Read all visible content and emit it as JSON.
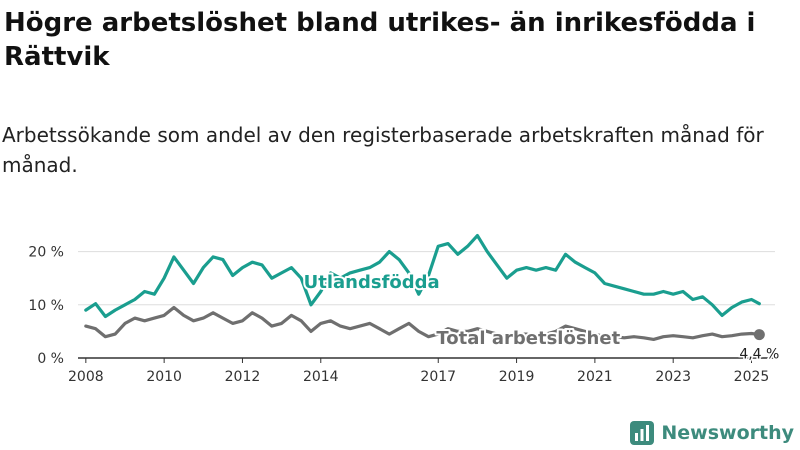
{
  "header": {
    "title": "Högre arbetslöshet bland utrikes- än inrikesfödda i Rättvik",
    "subtitle": "Arbetssökande som andel av den registerbaserade arbetskraften månad för månad."
  },
  "brand": {
    "name": "Newsworthy",
    "logo_icon": "chart-logo-icon",
    "color": "#3d8b7d"
  },
  "chart_data": {
    "type": "line",
    "title": "Högre arbetslöshet bland utrikes- än inrikesfödda i Rättvik",
    "subtitle": "Arbetssökande som andel av den registerbaserade arbetskraften månad för månad.",
    "xlabel": "",
    "ylabel": "",
    "xlim": [
      2007.8,
      2025.6
    ],
    "ylim": [
      0,
      25
    ],
    "y_ticks": [
      0,
      10,
      20
    ],
    "y_tick_labels": [
      "0 %",
      "10 %",
      "20 %"
    ],
    "x_ticks": [
      2008,
      2010,
      2012,
      2014,
      2017,
      2019,
      2021,
      2023,
      2025
    ],
    "grid": true,
    "legend": "direct labels",
    "series": [
      {
        "name": "Utlandsfödda",
        "color": "#1a9e8f",
        "points": [
          [
            2008.0,
            9.0
          ],
          [
            2008.25,
            10.2
          ],
          [
            2008.5,
            7.8
          ],
          [
            2008.75,
            9.0
          ],
          [
            2009.0,
            10.0
          ],
          [
            2009.25,
            11.0
          ],
          [
            2009.5,
            12.5
          ],
          [
            2009.75,
            12.0
          ],
          [
            2010.0,
            15.0
          ],
          [
            2010.25,
            19.0
          ],
          [
            2010.5,
            16.5
          ],
          [
            2010.75,
            14.0
          ],
          [
            2011.0,
            17.0
          ],
          [
            2011.25,
            19.0
          ],
          [
            2011.5,
            18.5
          ],
          [
            2011.75,
            15.5
          ],
          [
            2012.0,
            17.0
          ],
          [
            2012.25,
            18.0
          ],
          [
            2012.5,
            17.5
          ],
          [
            2012.75,
            15.0
          ],
          [
            2013.0,
            16.0
          ],
          [
            2013.25,
            17.0
          ],
          [
            2013.5,
            15.0
          ],
          [
            2013.75,
            10.0
          ],
          [
            2014.0,
            12.5
          ],
          [
            2014.25,
            16.0
          ],
          [
            2014.5,
            15.0
          ],
          [
            2014.75,
            16.0
          ],
          [
            2015.0,
            16.5
          ],
          [
            2015.25,
            17.0
          ],
          [
            2015.5,
            18.0
          ],
          [
            2015.75,
            20.0
          ],
          [
            2016.0,
            18.5
          ],
          [
            2016.25,
            16.0
          ],
          [
            2016.5,
            12.0
          ],
          [
            2016.75,
            15.5
          ],
          [
            2017.0,
            21.0
          ],
          [
            2017.25,
            21.5
          ],
          [
            2017.5,
            19.5
          ],
          [
            2017.75,
            21.0
          ],
          [
            2018.0,
            23.0
          ],
          [
            2018.25,
            20.0
          ],
          [
            2018.5,
            17.5
          ],
          [
            2018.75,
            15.0
          ],
          [
            2019.0,
            16.5
          ],
          [
            2019.25,
            17.0
          ],
          [
            2019.5,
            16.5
          ],
          [
            2019.75,
            17.0
          ],
          [
            2020.0,
            16.5
          ],
          [
            2020.25,
            19.5
          ],
          [
            2020.5,
            18.0
          ],
          [
            2020.75,
            17.0
          ],
          [
            2021.0,
            16.0
          ],
          [
            2021.25,
            14.0
          ],
          [
            2021.5,
            13.5
          ],
          [
            2021.75,
            13.0
          ],
          [
            2022.0,
            12.5
          ],
          [
            2022.25,
            12.0
          ],
          [
            2022.5,
            12.0
          ],
          [
            2022.75,
            12.5
          ],
          [
            2023.0,
            12.0
          ],
          [
            2023.25,
            12.5
          ],
          [
            2023.5,
            11.0
          ],
          [
            2023.75,
            11.5
          ],
          [
            2024.0,
            10.0
          ],
          [
            2024.25,
            8.0
          ],
          [
            2024.5,
            9.5
          ],
          [
            2024.75,
            10.5
          ],
          [
            2025.0,
            11.0
          ],
          [
            2025.2,
            10.2
          ]
        ]
      },
      {
        "name": "Total arbetslöshet",
        "color": "#6f6f6f",
        "points": [
          [
            2008.0,
            6.0
          ],
          [
            2008.25,
            5.5
          ],
          [
            2008.5,
            4.0
          ],
          [
            2008.75,
            4.5
          ],
          [
            2009.0,
            6.5
          ],
          [
            2009.25,
            7.5
          ],
          [
            2009.5,
            7.0
          ],
          [
            2009.75,
            7.5
          ],
          [
            2010.0,
            8.0
          ],
          [
            2010.25,
            9.5
          ],
          [
            2010.5,
            8.0
          ],
          [
            2010.75,
            7.0
          ],
          [
            2011.0,
            7.5
          ],
          [
            2011.25,
            8.5
          ],
          [
            2011.5,
            7.5
          ],
          [
            2011.75,
            6.5
          ],
          [
            2012.0,
            7.0
          ],
          [
            2012.25,
            8.5
          ],
          [
            2012.5,
            7.5
          ],
          [
            2012.75,
            6.0
          ],
          [
            2013.0,
            6.5
          ],
          [
            2013.25,
            8.0
          ],
          [
            2013.5,
            7.0
          ],
          [
            2013.75,
            5.0
          ],
          [
            2014.0,
            6.5
          ],
          [
            2014.25,
            7.0
          ],
          [
            2014.5,
            6.0
          ],
          [
            2014.75,
            5.5
          ],
          [
            2015.0,
            6.0
          ],
          [
            2015.25,
            6.5
          ],
          [
            2015.5,
            5.5
          ],
          [
            2015.75,
            4.5
          ],
          [
            2016.0,
            5.5
          ],
          [
            2016.25,
            6.5
          ],
          [
            2016.5,
            5.0
          ],
          [
            2016.75,
            4.0
          ],
          [
            2017.0,
            4.5
          ],
          [
            2017.25,
            5.5
          ],
          [
            2017.5,
            5.0
          ],
          [
            2017.75,
            5.0
          ],
          [
            2018.0,
            5.5
          ],
          [
            2018.25,
            5.0
          ],
          [
            2018.5,
            4.5
          ],
          [
            2018.75,
            4.0
          ],
          [
            2019.0,
            4.5
          ],
          [
            2019.25,
            4.5
          ],
          [
            2019.5,
            4.0
          ],
          [
            2019.75,
            4.5
          ],
          [
            2020.0,
            5.0
          ],
          [
            2020.25,
            6.0
          ],
          [
            2020.5,
            5.5
          ],
          [
            2020.75,
            5.0
          ],
          [
            2021.0,
            4.5
          ],
          [
            2021.25,
            4.0
          ],
          [
            2021.5,
            4.0
          ],
          [
            2021.75,
            3.8
          ],
          [
            2022.0,
            4.0
          ],
          [
            2022.25,
            3.8
          ],
          [
            2022.5,
            3.5
          ],
          [
            2022.75,
            4.0
          ],
          [
            2023.0,
            4.2
          ],
          [
            2023.25,
            4.0
          ],
          [
            2023.5,
            3.8
          ],
          [
            2023.75,
            4.2
          ],
          [
            2024.0,
            4.5
          ],
          [
            2024.25,
            4.0
          ],
          [
            2024.5,
            4.2
          ],
          [
            2024.75,
            4.5
          ],
          [
            2025.0,
            4.6
          ],
          [
            2025.2,
            4.4
          ]
        ]
      }
    ],
    "annotations": {
      "last_value_label": "4,4 %"
    }
  }
}
